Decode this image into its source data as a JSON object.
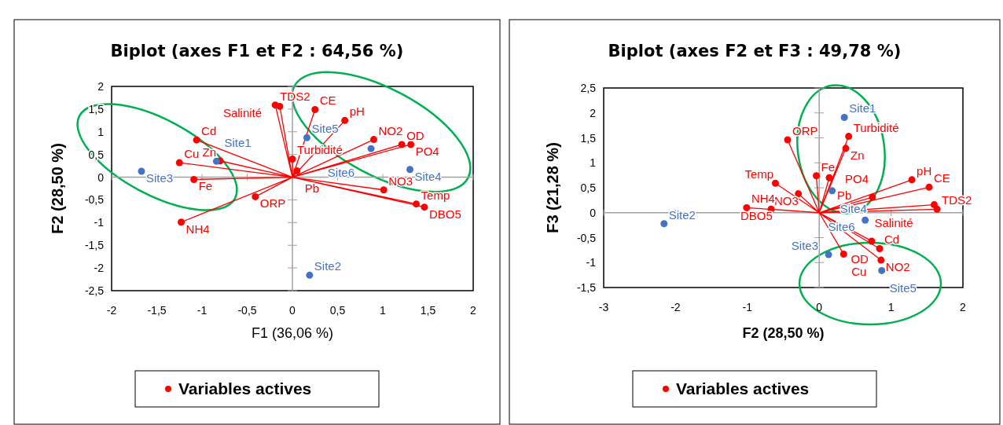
{
  "chart_data": [
    {
      "type": "scatter",
      "title": "Biplot (axes F1 et F2 : 64,56 %)",
      "xlabel": "F1 (36,06 %)",
      "ylabel": "F2 (28,50 %)",
      "legend": "bottom",
      "marker": "circle",
      "xlim": [
        -2,
        2
      ],
      "ylim": [
        -2.5,
        2
      ],
      "xticks": [
        -2,
        {
          "value": -1.5,
          "label": "-1,5"
        },
        -1,
        {
          "value": -0.5,
          "label": "-0,5"
        },
        0,
        {
          "value": 0.5,
          "label": "0,5"
        },
        1,
        {
          "value": 1.5,
          "label": "1,5"
        },
        2
      ],
      "yticks": [
        {
          "value": -2.5,
          "label": "-2,5"
        },
        -2,
        {
          "value": -1.5,
          "label": "-1,5"
        },
        -1,
        {
          "value": -0.5,
          "label": "-0,5"
        },
        0,
        {
          "value": 0.5,
          "label": "0,5"
        },
        1,
        {
          "value": 1.5,
          "label": "1,5"
        },
        2
      ],
      "series": [
        {
          "type": "line",
          "color": "#ff0000",
          "marker": "none",
          "x": [
            0,
            -0.19,
            null,
            0,
            -0.14,
            null,
            0,
            0.25,
            null,
            0,
            0.58,
            null,
            0,
            0.9,
            null,
            0,
            1.21,
            null,
            0,
            1.31,
            null,
            0,
            -1.06,
            null,
            0,
            -1.25,
            null,
            0,
            -0.8,
            null,
            0,
            0,
            null,
            0,
            0.05,
            null,
            0,
            -1.09,
            null,
            0,
            -0.41,
            null,
            0,
            -1.23,
            null,
            0,
            1.01,
            null,
            0,
            1.37,
            null,
            0,
            1.46
          ],
          "values": [
            0,
            1.59,
            null,
            0,
            1.56,
            null,
            0,
            1.49,
            null,
            0,
            1.25,
            null,
            0,
            0.83,
            null,
            0,
            0.72,
            null,
            0,
            0.72,
            null,
            0,
            0.82,
            null,
            0,
            0.32,
            null,
            0,
            0.36,
            null,
            0,
            0.4,
            null,
            0,
            0.14,
            null,
            0,
            -0.05,
            null,
            0,
            -0.43,
            null,
            0,
            -0.99,
            null,
            0,
            -0.28,
            null,
            0,
            -0.59,
            null,
            0,
            -0.66
          ]
        },
        {
          "name": "Variables actives",
          "color": "#ff0000",
          "x": [
            -0.19,
            -0.14,
            0.25,
            0.58,
            0.9,
            1.21,
            1.31,
            -1.06,
            -1.25,
            -0.8,
            0,
            0.05,
            -1.09,
            -0.41,
            -1.23,
            1.01,
            1.37,
            1.46
          ],
          "values": [
            1.59,
            1.56,
            1.49,
            1.25,
            0.83,
            0.72,
            0.72,
            0.82,
            0.32,
            0.36,
            0.4,
            0.14,
            -0.05,
            -0.43,
            -0.99,
            -0.28,
            -0.59,
            -0.66
          ]
        },
        {
          "color": "#4472c4",
          "x": [
            -0.84,
            0.19,
            -1.67,
            1.3,
            0.16,
            0.87
          ],
          "values": [
            0.35,
            -2.16,
            0.13,
            0.17,
            0.87,
            0.63
          ]
        }
      ],
      "annotations": [
        {
          "text": "TDS2",
          "x": -0.19,
          "y": 1.59
        },
        {
          "text": "Salinité",
          "x": -0.14,
          "y": 1.56
        },
        {
          "text": "CE",
          "x": 0.25,
          "y": 1.49
        },
        {
          "text": "pH",
          "x": 0.58,
          "y": 1.25
        },
        {
          "text": "NO2",
          "x": 0.9,
          "y": 0.83
        },
        {
          "text": "OD",
          "x": 1.21,
          "y": 0.72
        },
        {
          "text": "PO4",
          "x": 1.31,
          "y": 0.72
        },
        {
          "text": "Cd",
          "x": -1.06,
          "y": 0.82
        },
        {
          "text": "Cu",
          "x": -1.25,
          "y": 0.32
        },
        {
          "text": "Zn",
          "x": -0.8,
          "y": 0.36
        },
        {
          "text": "Turbidité",
          "x": 0,
          "y": 0.4
        },
        {
          "text": "Pb",
          "x": 0.05,
          "y": 0.14
        },
        {
          "text": "Fe",
          "x": -1.09,
          "y": -0.05
        },
        {
          "text": "ORP",
          "x": -0.41,
          "y": -0.43
        },
        {
          "text": "NH4",
          "x": -1.23,
          "y": -0.99
        },
        {
          "text": "NO3",
          "x": 1.01,
          "y": -0.28
        },
        {
          "text": "Temp",
          "x": 1.37,
          "y": -0.59
        },
        {
          "text": "DBO5",
          "x": 1.46,
          "y": -0.66
        },
        {
          "text": "Site1",
          "x": -0.84,
          "y": 0.35
        },
        {
          "text": "Site2",
          "x": 0.19,
          "y": -2.16
        },
        {
          "text": "Site3",
          "x": -1.67,
          "y": 0.13
        },
        {
          "text": "Site4",
          "x": 1.3,
          "y": 0.17
        },
        {
          "text": "Site5",
          "x": 0.16,
          "y": 0.87
        },
        {
          "text": "Site6",
          "x": 0.87,
          "y": 0.63
        }
      ]
    },
    {
      "type": "scatter",
      "title": "Biplot (axes F2 et F3 : 49,78 %)",
      "xlabel": "F2 (28,50 %)",
      "ylabel": "F3 (21,28 %)",
      "legend": "bottom",
      "marker": "circle",
      "xlim": [
        -3,
        2
      ],
      "ylim": [
        -1.5,
        2.5
      ],
      "xticks": [
        -3,
        -2,
        -1,
        0,
        1,
        2
      ],
      "yticks": [
        {
          "value": -1.5,
          "label": "-1,5"
        },
        -1,
        {
          "value": -0.5,
          "label": "-0,5"
        },
        0,
        {
          "value": 0.5,
          "label": "0,5"
        },
        1,
        {
          "value": 1.5,
          "label": "1,5"
        },
        2,
        {
          "value": 2.5,
          "label": "2,5"
        }
      ],
      "series": [
        {
          "type": "line",
          "color": "#ff0000",
          "marker": "none",
          "x": [
            0,
            -0.44,
            null,
            0,
            0.41,
            null,
            0,
            0.37,
            null,
            0,
            -0.04,
            null,
            0,
            0.14,
            null,
            0,
            -0.61,
            null,
            0,
            -0.29,
            null,
            0,
            -1.01,
            null,
            0,
            -0.67,
            null,
            0,
            0.74,
            null,
            0,
            1.29,
            null,
            0,
            1.53,
            null,
            0,
            1.6,
            null,
            0,
            1.64,
            null,
            0,
            0.73,
            null,
            0,
            0.84,
            null,
            0,
            0.86,
            null,
            0,
            0.34
          ],
          "values": [
            0,
            1.46,
            null,
            0,
            1.53,
            null,
            0,
            1.29,
            null,
            0,
            0.74,
            null,
            0,
            0.7,
            null,
            0,
            0.59,
            null,
            0,
            0.38,
            null,
            0,
            0.1,
            null,
            0,
            0.07,
            null,
            0,
            0.31,
            null,
            0,
            0.66,
            null,
            0,
            0.51,
            null,
            0,
            0.16,
            null,
            0,
            0.07,
            null,
            0,
            -0.57,
            null,
            0,
            -0.72,
            null,
            0,
            -0.95,
            null,
            0,
            -0.83
          ]
        },
        {
          "name": "Variables actives",
          "color": "#ff0000",
          "x": [
            -0.44,
            0.41,
            0.37,
            -0.04,
            0.14,
            -0.61,
            -0.29,
            -1.01,
            -0.67,
            0.74,
            1.29,
            1.53,
            1.6,
            1.64,
            0.73,
            0.84,
            0.86,
            0.34
          ],
          "values": [
            1.46,
            1.53,
            1.29,
            0.74,
            0.7,
            0.59,
            0.38,
            0.1,
            0.07,
            0.31,
            0.66,
            0.51,
            0.16,
            0.07,
            -0.57,
            -0.72,
            -0.95,
            -0.83
          ]
        },
        {
          "color": "#4472c4",
          "x": [
            0.35,
            -2.16,
            0.13,
            0.18,
            0.87,
            0.64
          ],
          "values": [
            1.91,
            -0.22,
            -0.84,
            0.44,
            -1.16,
            -0.15
          ]
        }
      ],
      "annotations": [
        {
          "text": "ORP",
          "x": -0.44,
          "y": 1.46
        },
        {
          "text": "Turbidité",
          "x": 0.41,
          "y": 1.53
        },
        {
          "text": "Zn",
          "x": 0.37,
          "y": 1.29
        },
        {
          "text": "Fe",
          "x": -0.04,
          "y": 0.74
        },
        {
          "text": "Pb",
          "x": 0.14,
          "y": 0.7
        },
        {
          "text": "Temp",
          "x": -0.61,
          "y": 0.59
        },
        {
          "text": "NO3",
          "x": -0.29,
          "y": 0.38
        },
        {
          "text": "NH4",
          "x": -1.01,
          "y": 0.1
        },
        {
          "text": "DBO5",
          "x": -0.67,
          "y": 0.07
        },
        {
          "text": "PO4",
          "x": 0.74,
          "y": 0.31
        },
        {
          "text": "pH",
          "x": 1.29,
          "y": 0.66
        },
        {
          "text": "CE",
          "x": 1.53,
          "y": 0.51
        },
        {
          "text": "Salinité",
          "x": 1.6,
          "y": 0.16
        },
        {
          "text": "TDS2",
          "x": 1.64,
          "y": 0.07
        },
        {
          "text": "OD",
          "x": 0.73,
          "y": -0.57
        },
        {
          "text": "Cd",
          "x": 0.84,
          "y": -0.72
        },
        {
          "text": "NO2",
          "x": 0.86,
          "y": -0.95
        },
        {
          "text": "Cu",
          "x": 0.34,
          "y": -0.83
        },
        {
          "text": "Site1",
          "x": 0.35,
          "y": 1.91
        },
        {
          "text": "Site2",
          "x": -2.16,
          "y": -0.22
        },
        {
          "text": "Site3",
          "x": 0.13,
          "y": -0.84
        },
        {
          "text": "Site4",
          "x": 0.18,
          "y": 0.44
        },
        {
          "text": "Site5",
          "x": 0.87,
          "y": -1.16
        },
        {
          "text": "Site6",
          "x": 0.64,
          "y": -0.15
        }
      ]
    }
  ]
}
